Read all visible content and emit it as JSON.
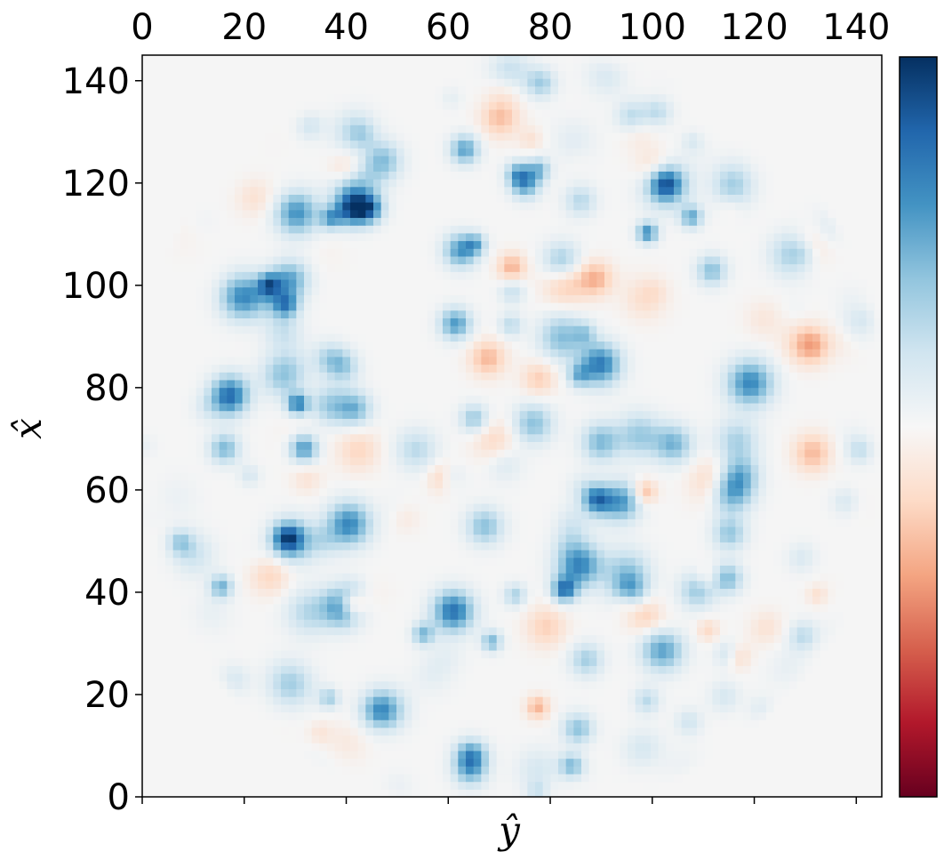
{
  "chart_data": {
    "type": "heatmap",
    "title": "",
    "xlabel": "ŷ",
    "ylabel": "x̂",
    "xlim": [
      0,
      145
    ],
    "ylim": [
      0,
      145
    ],
    "xticks": [
      0,
      20,
      40,
      60,
      80,
      100,
      120,
      140
    ],
    "yticks": [
      0,
      20,
      40,
      60,
      80,
      100,
      120,
      140
    ],
    "x_tick_labels": [
      "0",
      "20",
      "40",
      "60",
      "80",
      "100",
      "120",
      "140"
    ],
    "y_tick_labels": [
      "0",
      "20",
      "40",
      "60",
      "80",
      "100",
      "120",
      "140"
    ],
    "x_tick_label_position": "top",
    "grid": false,
    "colormap": "RdBu",
    "colorbar": {
      "position": "right",
      "tick_labels": []
    },
    "field": {
      "description_units": "pixel grid",
      "support": "roughly circular disk",
      "center": [
        72,
        72
      ],
      "radius": 72,
      "background_value": 0,
      "value_range": [
        -1,
        1
      ]
    },
    "colors": {
      "neutral": "#f5f5f5",
      "positive_dark": "#0d3b73",
      "negative_dark": "#7a0b1e"
    }
  }
}
